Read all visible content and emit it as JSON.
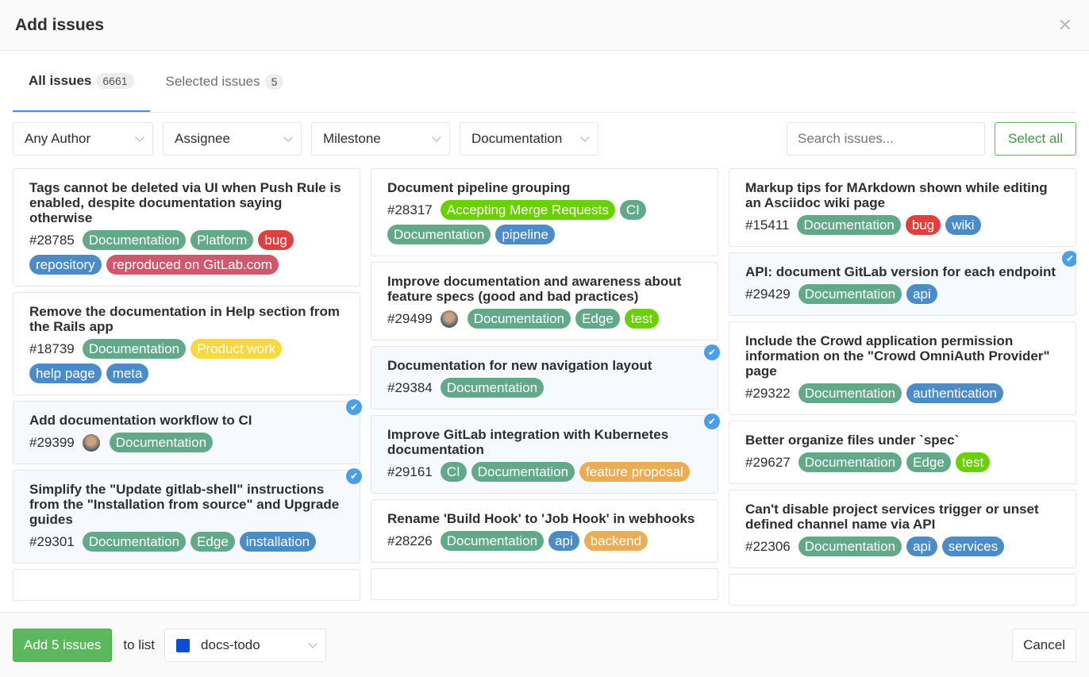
{
  "modal": {
    "title": "Add issues",
    "close_icon": "times-icon"
  },
  "tabs": [
    {
      "label": "All issues",
      "count": "6661",
      "active": true
    },
    {
      "label": "Selected issues",
      "count": "5",
      "active": false
    }
  ],
  "filters": {
    "author": "Any Author",
    "assignee": "Assignee",
    "milestone": "Milestone",
    "label": "Documentation",
    "search_placeholder": "Search issues...",
    "select_all": "Select all"
  },
  "colors": {
    "green": "#62a98a",
    "blue": "#4a8bc8",
    "red": "#e13e3e",
    "yellow": "#f8d83c",
    "lime": "#69d100",
    "pink": "#d1586c",
    "orange": "#eaad56",
    "list": "#0b4ed1",
    "check": "#4aa0e8"
  },
  "columns": [
    [
      {
        "title": "Tags cannot be deleted via UI when Push Rule is enabled, despite documentation saying otherwise",
        "ref": "#28785",
        "avatar": false,
        "selected": false,
        "labels": [
          {
            "text": "Documentation",
            "color": "#62a98a"
          },
          {
            "text": "Platform",
            "color": "#62a98a"
          },
          {
            "text": "bug",
            "color": "#e13e3e"
          },
          {
            "text": "repository",
            "color": "#4a8bc8"
          },
          {
            "text": "reproduced on GitLab.com",
            "color": "#d1586c"
          }
        ]
      },
      {
        "title": "Remove the documentation in Help section from the Rails app",
        "ref": "#18739",
        "avatar": false,
        "selected": false,
        "labels": [
          {
            "text": "Documentation",
            "color": "#62a98a"
          },
          {
            "text": "Product work",
            "color": "#f8d83c"
          },
          {
            "text": "help page",
            "color": "#4a8bc8"
          },
          {
            "text": "meta",
            "color": "#4a8bc8"
          }
        ]
      },
      {
        "title": "Add documentation workflow to CI",
        "ref": "#29399",
        "avatar": true,
        "selected": true,
        "labels": [
          {
            "text": "Documentation",
            "color": "#62a98a"
          }
        ]
      },
      {
        "title": "Simplify the \"Update gitlab-shell\" instructions from the \"Installation from source\" and Upgrade guides",
        "ref": "#29301",
        "avatar": false,
        "selected": true,
        "labels": [
          {
            "text": "Documentation",
            "color": "#62a98a"
          },
          {
            "text": "Edge",
            "color": "#62a98a"
          },
          {
            "text": "installation",
            "color": "#4a8bc8"
          }
        ]
      }
    ],
    [
      {
        "title": "Document pipeline grouping",
        "ref": "#28317",
        "avatar": false,
        "selected": false,
        "labels": [
          {
            "text": "Accepting Merge Requests",
            "color": "#69d100"
          },
          {
            "text": "CI",
            "color": "#62a98a"
          },
          {
            "text": "Documentation",
            "color": "#62a98a"
          },
          {
            "text": "pipeline",
            "color": "#4a8bc8"
          }
        ]
      },
      {
        "title": "Improve documentation and awareness about feature specs (good and bad practices)",
        "ref": "#29499",
        "avatar": true,
        "selected": false,
        "labels": [
          {
            "text": "Documentation",
            "color": "#62a98a"
          },
          {
            "text": "Edge",
            "color": "#62a98a"
          },
          {
            "text": "test",
            "color": "#69d100"
          }
        ]
      },
      {
        "title": "Documentation for new navigation layout",
        "ref": "#29384",
        "avatar": false,
        "selected": true,
        "labels": [
          {
            "text": "Documentation",
            "color": "#62a98a"
          }
        ]
      },
      {
        "title": "Improve GitLab integration with Kubernetes documentation",
        "ref": "#29161",
        "avatar": false,
        "selected": true,
        "labels": [
          {
            "text": "CI",
            "color": "#62a98a"
          },
          {
            "text": "Documentation",
            "color": "#62a98a"
          },
          {
            "text": "feature proposal",
            "color": "#eaad56"
          }
        ]
      },
      {
        "title": "Rename 'Build Hook' to 'Job Hook' in webhooks",
        "ref": "#28226",
        "avatar": false,
        "selected": false,
        "labels": [
          {
            "text": "Documentation",
            "color": "#62a98a"
          },
          {
            "text": "api",
            "color": "#4a8bc8"
          },
          {
            "text": "backend",
            "color": "#eaad56"
          }
        ]
      }
    ],
    [
      {
        "title": "Markup tips for MArkdown shown while editing an Asciidoc wiki page",
        "ref": "#15411",
        "avatar": false,
        "selected": false,
        "labels": [
          {
            "text": "Documentation",
            "color": "#62a98a"
          },
          {
            "text": "bug",
            "color": "#e13e3e"
          },
          {
            "text": "wiki",
            "color": "#4a8bc8"
          }
        ]
      },
      {
        "title": "API: document GitLab version for each endpoint",
        "ref": "#29429",
        "avatar": false,
        "selected": true,
        "labels": [
          {
            "text": "Documentation",
            "color": "#62a98a"
          },
          {
            "text": "api",
            "color": "#4a8bc8"
          }
        ]
      },
      {
        "title": "Include the Crowd application permission information on the \"Crowd OmniAuth Provider\" page",
        "ref": "#29322",
        "avatar": false,
        "selected": false,
        "labels": [
          {
            "text": "Documentation",
            "color": "#62a98a"
          },
          {
            "text": "authentication",
            "color": "#4a8bc8"
          }
        ]
      },
      {
        "title": "Better organize files under `spec`",
        "ref": "#29627",
        "avatar": false,
        "selected": false,
        "labels": [
          {
            "text": "Documentation",
            "color": "#62a98a"
          },
          {
            "text": "Edge",
            "color": "#62a98a"
          },
          {
            "text": "test",
            "color": "#69d100"
          }
        ]
      },
      {
        "title": "Can't disable project services trigger or unset defined channel name via API",
        "ref": "#22306",
        "avatar": false,
        "selected": false,
        "labels": [
          {
            "text": "Documentation",
            "color": "#62a98a"
          },
          {
            "text": "api",
            "color": "#4a8bc8"
          },
          {
            "text": "services",
            "color": "#4a8bc8"
          }
        ]
      }
    ]
  ],
  "footer": {
    "add_button": "Add 5 issues",
    "to_list": "to list",
    "list_name": "docs-todo",
    "cancel": "Cancel"
  }
}
